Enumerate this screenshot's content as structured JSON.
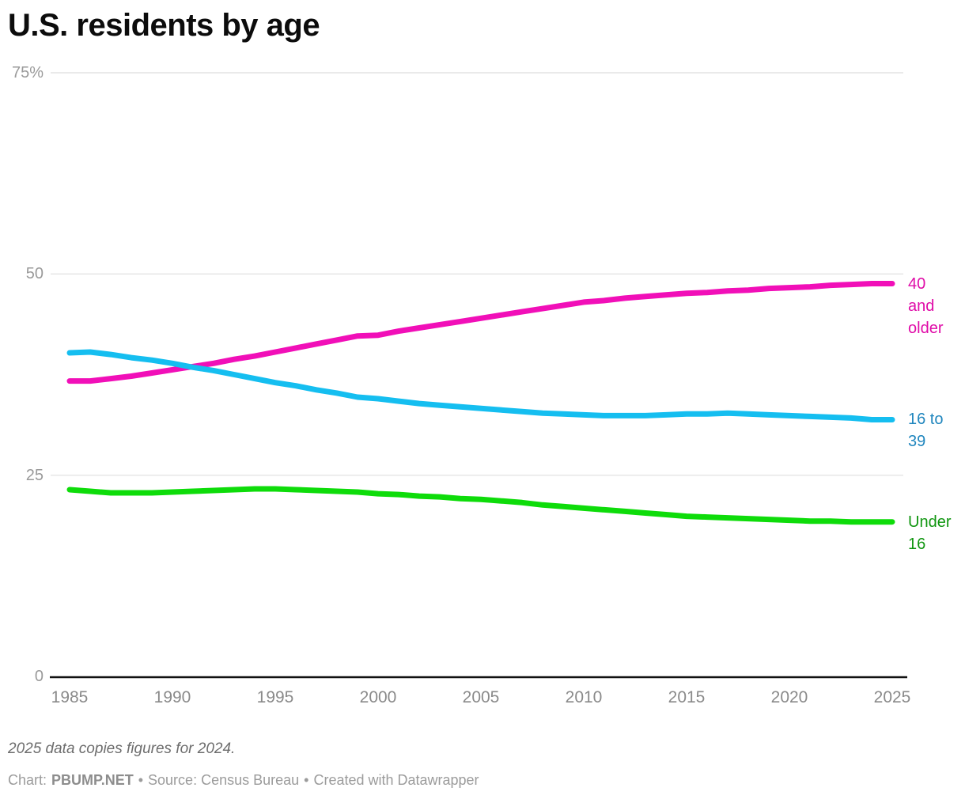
{
  "title": "U.S. residents by age",
  "footnote": "2025 data copies figures for 2024.",
  "attribution": {
    "chart_label": "Chart:",
    "chart_credit": "PBUMP.NET",
    "separator1": "•",
    "source_text": "Source: Census Bureau",
    "separator2": "•",
    "created_text": "Created with Datawrapper"
  },
  "colors": {
    "grid": "#e4e4e4",
    "axis": "#111111",
    "y_tick_text": "#9a9a9a",
    "x_tick_text": "#8a8a8a",
    "background": "#ffffff"
  },
  "chart_data": {
    "type": "line",
    "title": "U.S. residents by age",
    "xlabel": "",
    "ylabel": "",
    "ylim": [
      0,
      75
    ],
    "grid": "horizontal",
    "legend_position": "right-edge-labels",
    "y_ticks": [
      {
        "value": 75,
        "label": "75%"
      },
      {
        "value": 50,
        "label": "50"
      },
      {
        "value": 25,
        "label": "25"
      },
      {
        "value": 0,
        "label": "0"
      }
    ],
    "x_ticks": [
      1985,
      1990,
      1995,
      2000,
      2005,
      2010,
      2015,
      2020,
      2025
    ],
    "x": [
      1985,
      1986,
      1987,
      1988,
      1989,
      1990,
      1991,
      1992,
      1993,
      1994,
      1995,
      1996,
      1997,
      1998,
      1999,
      2000,
      2001,
      2002,
      2003,
      2004,
      2005,
      2006,
      2007,
      2008,
      2009,
      2010,
      2011,
      2012,
      2013,
      2014,
      2015,
      2016,
      2017,
      2018,
      2019,
      2020,
      2021,
      2022,
      2023,
      2024,
      2025
    ],
    "series": [
      {
        "name": "40 and older",
        "label_lines": [
          "40",
          "and",
          "older"
        ],
        "color": "#f10fb8",
        "label_color": "#e00ca8",
        "values": [
          36.7,
          36.7,
          37.0,
          37.3,
          37.7,
          38.1,
          38.5,
          38.9,
          39.4,
          39.8,
          40.3,
          40.8,
          41.3,
          41.8,
          42.3,
          42.4,
          42.9,
          43.3,
          43.7,
          44.1,
          44.5,
          44.9,
          45.3,
          45.7,
          46.1,
          46.5,
          46.7,
          47.0,
          47.2,
          47.4,
          47.6,
          47.7,
          47.9,
          48.0,
          48.2,
          48.3,
          48.4,
          48.6,
          48.7,
          48.8,
          48.8
        ]
      },
      {
        "name": "16 to 39",
        "label_lines": [
          "16 to",
          "39"
        ],
        "color": "#15bef0",
        "label_color": "#2086be",
        "values": [
          40.2,
          40.3,
          40.0,
          39.6,
          39.3,
          38.9,
          38.4,
          38.0,
          37.5,
          37.0,
          36.5,
          36.1,
          35.6,
          35.2,
          34.7,
          34.5,
          34.2,
          33.9,
          33.7,
          33.5,
          33.3,
          33.1,
          32.9,
          32.7,
          32.6,
          32.5,
          32.4,
          32.4,
          32.4,
          32.5,
          32.6,
          32.6,
          32.7,
          32.6,
          32.5,
          32.4,
          32.3,
          32.2,
          32.1,
          31.9,
          31.9
        ]
      },
      {
        "name": "Under 16",
        "label_lines": [
          "Under",
          "16"
        ],
        "color": "#0edc0a",
        "label_color": "#109610",
        "values": [
          23.2,
          23.0,
          22.8,
          22.8,
          22.8,
          22.9,
          23.0,
          23.1,
          23.2,
          23.3,
          23.3,
          23.2,
          23.1,
          23.0,
          22.9,
          22.7,
          22.6,
          22.4,
          22.3,
          22.1,
          22.0,
          21.8,
          21.6,
          21.3,
          21.1,
          20.9,
          20.7,
          20.5,
          20.3,
          20.1,
          19.9,
          19.8,
          19.7,
          19.6,
          19.5,
          19.4,
          19.3,
          19.3,
          19.2,
          19.2,
          19.2
        ]
      }
    ]
  }
}
